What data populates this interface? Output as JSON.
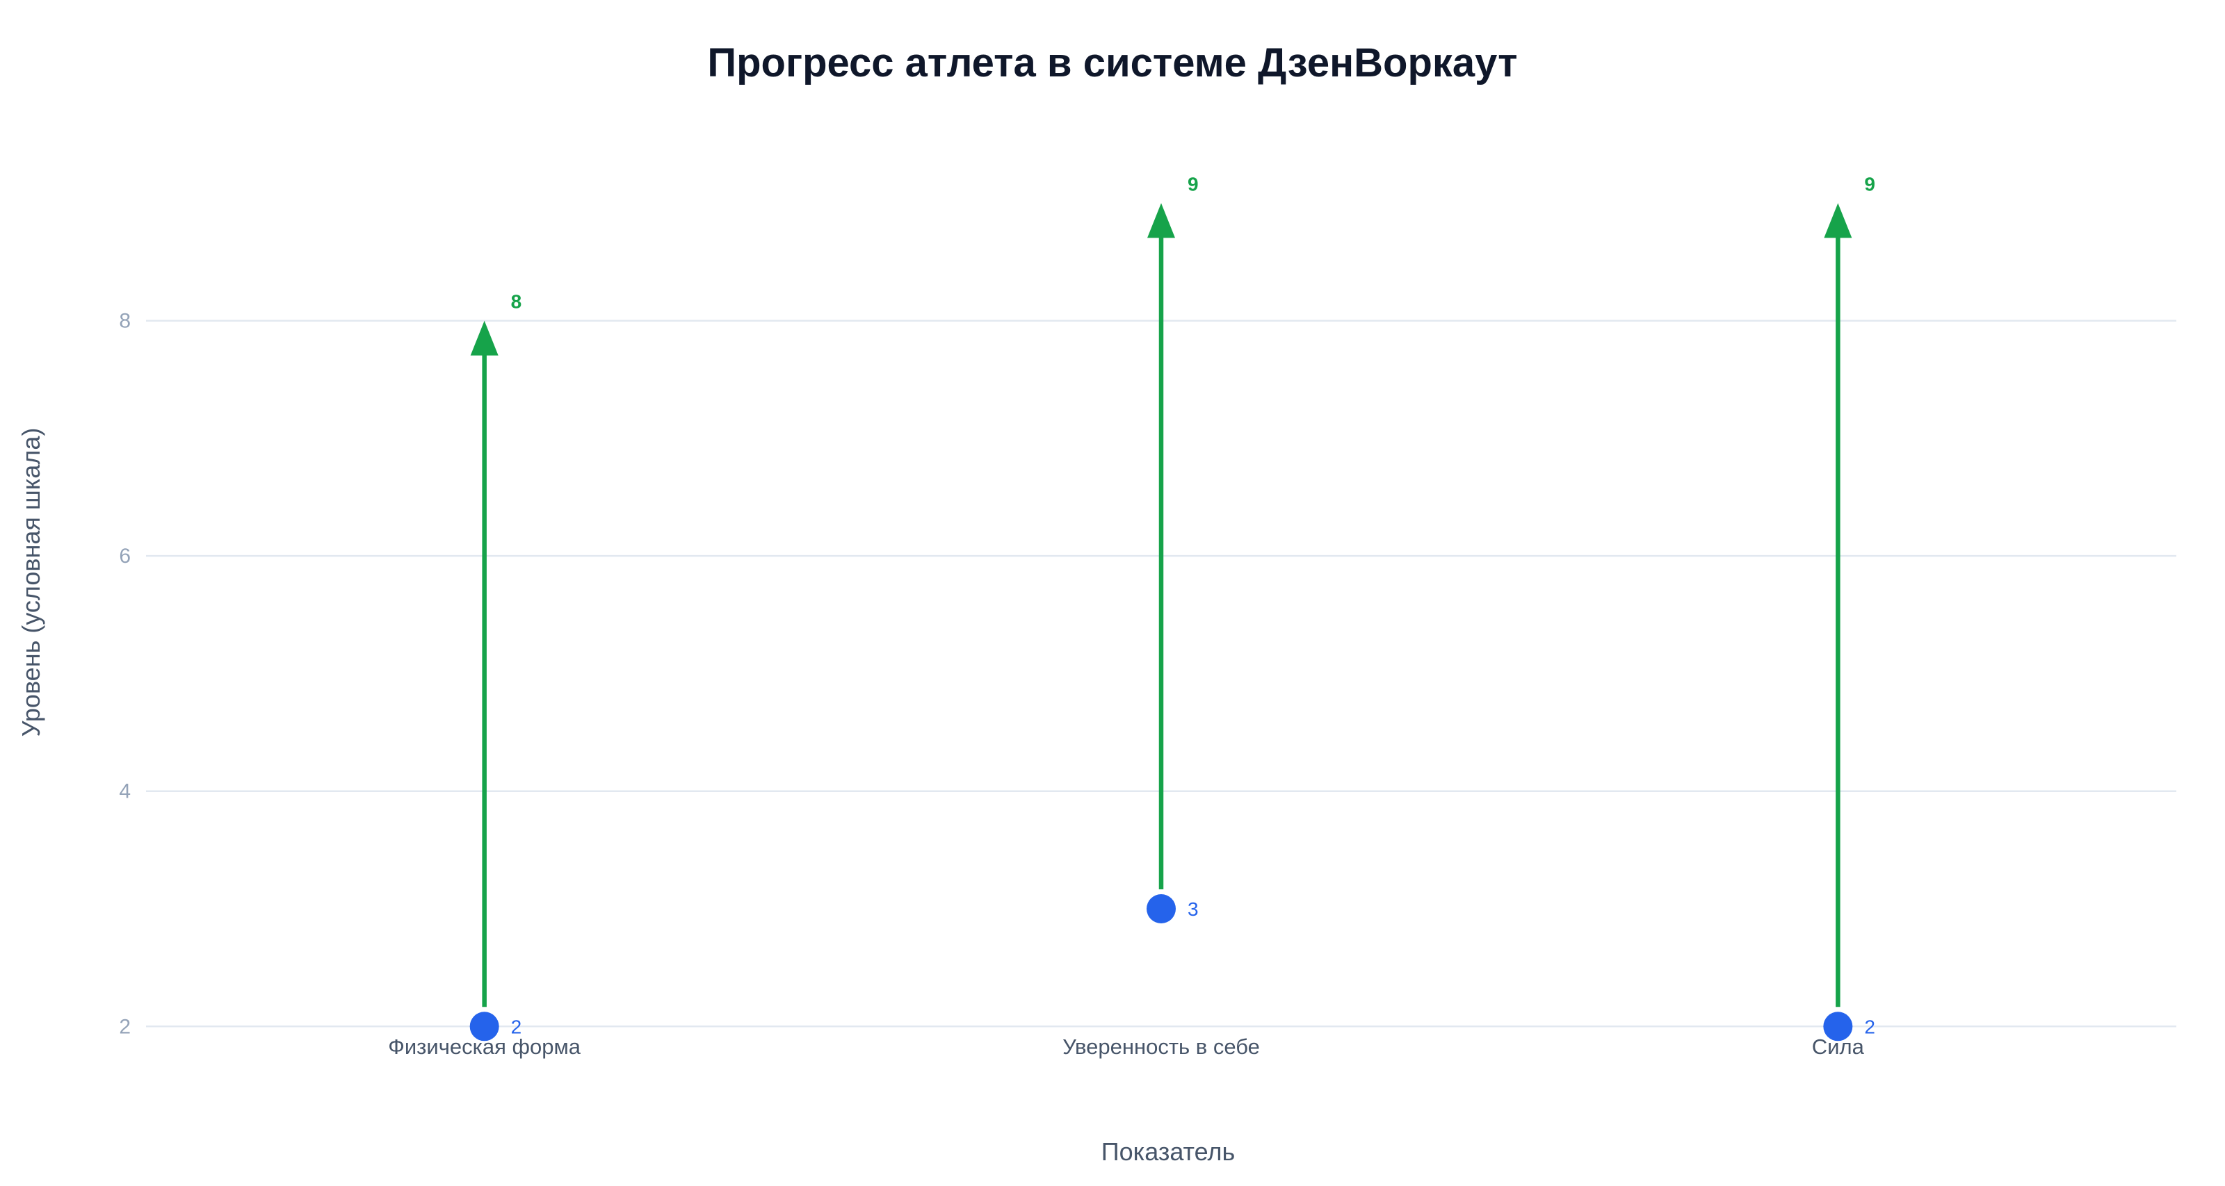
{
  "chart_data": {
    "type": "arrow",
    "title": "Прогресс атлета в системе ДзенВоркаут",
    "xlabel": "Показатель",
    "ylabel": "Уровень (условная шкала)",
    "categories": [
      "Физическая форма",
      "Уверенность в себе",
      "Сила"
    ],
    "series": [
      {
        "values": [
          2,
          3,
          2
        ]
      },
      {
        "values": [
          8,
          9,
          9
        ]
      }
    ],
    "yticks": [
      2,
      4,
      6,
      8
    ],
    "ylim": [
      1.6,
      9.9
    ],
    "grid": true,
    "legend": "none",
    "colors": {
      "start_marker": "#2563eb",
      "arrow": "#16a34a",
      "grid": "#e2e8f0"
    }
  }
}
